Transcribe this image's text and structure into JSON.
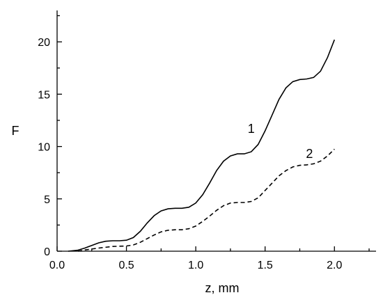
{
  "chart_data": {
    "type": "line",
    "xlabel": "z, mm",
    "ylabel": "F",
    "xlim": [
      0.0,
      2.3
    ],
    "ylim": [
      0,
      23
    ],
    "x_ticks": [
      "0.0",
      "0.5",
      "1.0",
      "1.5",
      "2.0"
    ],
    "y_ticks": [
      "0",
      "5",
      "10",
      "15",
      "20"
    ],
    "grid": false,
    "series": [
      {
        "name": "1",
        "style": "solid",
        "color": "#000000",
        "points": [
          [
            0.08,
            0.0
          ],
          [
            0.15,
            0.1
          ],
          [
            0.2,
            0.3
          ],
          [
            0.25,
            0.55
          ],
          [
            0.3,
            0.8
          ],
          [
            0.35,
            0.95
          ],
          [
            0.4,
            1.0
          ],
          [
            0.45,
            1.0
          ],
          [
            0.5,
            1.05
          ],
          [
            0.55,
            1.3
          ],
          [
            0.6,
            1.9
          ],
          [
            0.65,
            2.7
          ],
          [
            0.7,
            3.4
          ],
          [
            0.75,
            3.85
          ],
          [
            0.8,
            4.05
          ],
          [
            0.85,
            4.1
          ],
          [
            0.9,
            4.1
          ],
          [
            0.95,
            4.2
          ],
          [
            1.0,
            4.6
          ],
          [
            1.05,
            5.4
          ],
          [
            1.1,
            6.5
          ],
          [
            1.15,
            7.7
          ],
          [
            1.2,
            8.6
          ],
          [
            1.25,
            9.1
          ],
          [
            1.3,
            9.3
          ],
          [
            1.35,
            9.3
          ],
          [
            1.4,
            9.5
          ],
          [
            1.45,
            10.2
          ],
          [
            1.5,
            11.5
          ],
          [
            1.55,
            13.0
          ],
          [
            1.6,
            14.5
          ],
          [
            1.65,
            15.6
          ],
          [
            1.7,
            16.2
          ],
          [
            1.75,
            16.4
          ],
          [
            1.8,
            16.45
          ],
          [
            1.85,
            16.6
          ],
          [
            1.9,
            17.2
          ],
          [
            1.95,
            18.5
          ],
          [
            2.0,
            20.2
          ]
        ]
      },
      {
        "name": "2",
        "style": "dashed",
        "color": "#000000",
        "points": [
          [
            0.15,
            0.0
          ],
          [
            0.2,
            0.12
          ],
          [
            0.3,
            0.3
          ],
          [
            0.4,
            0.45
          ],
          [
            0.5,
            0.5
          ],
          [
            0.55,
            0.6
          ],
          [
            0.6,
            0.85
          ],
          [
            0.65,
            1.2
          ],
          [
            0.7,
            1.55
          ],
          [
            0.75,
            1.85
          ],
          [
            0.8,
            2.0
          ],
          [
            0.85,
            2.05
          ],
          [
            0.9,
            2.05
          ],
          [
            0.95,
            2.15
          ],
          [
            1.0,
            2.4
          ],
          [
            1.05,
            2.85
          ],
          [
            1.1,
            3.35
          ],
          [
            1.15,
            3.9
          ],
          [
            1.2,
            4.35
          ],
          [
            1.25,
            4.6
          ],
          [
            1.3,
            4.65
          ],
          [
            1.35,
            4.65
          ],
          [
            1.4,
            4.75
          ],
          [
            1.45,
            5.1
          ],
          [
            1.5,
            5.8
          ],
          [
            1.55,
            6.5
          ],
          [
            1.6,
            7.2
          ],
          [
            1.65,
            7.7
          ],
          [
            1.7,
            8.05
          ],
          [
            1.75,
            8.2
          ],
          [
            1.8,
            8.25
          ],
          [
            1.85,
            8.35
          ],
          [
            1.9,
            8.6
          ],
          [
            1.95,
            9.1
          ],
          [
            2.0,
            9.75
          ]
        ]
      }
    ],
    "annotations": [
      {
        "text": "1",
        "x": 1.4,
        "y": 11.3
      },
      {
        "text": "2",
        "x": 1.82,
        "y": 8.9
      }
    ]
  }
}
